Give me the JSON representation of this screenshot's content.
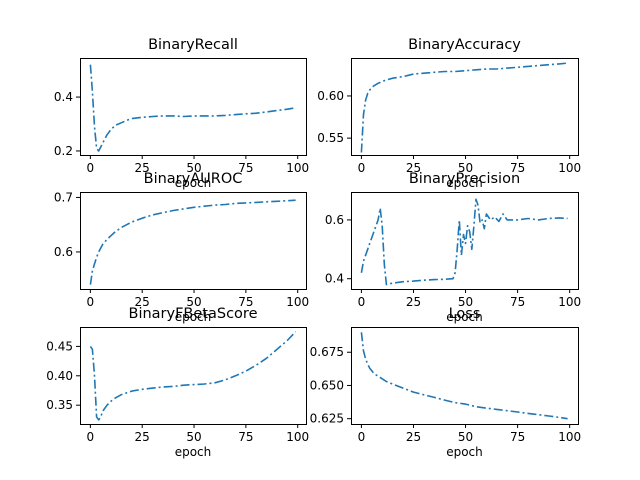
{
  "colors": {
    "series": "#1f77b4",
    "axes": "#000000",
    "background": "#ffffff"
  },
  "chart_data": [
    {
      "type": "line",
      "title": "BinaryRecall",
      "xlabel": "epoch",
      "ylabel": "",
      "xlim": [
        -5,
        104
      ],
      "ylim": [
        0.185,
        0.545
      ],
      "xticks": [
        0,
        25,
        50,
        75,
        100
      ],
      "yticks": [
        0.2,
        0.4
      ],
      "ytick_labels": [
        "0.2",
        "0.4"
      ],
      "linestyle": "dashdot",
      "grid": false,
      "series": [
        {
          "x": [
            0,
            1,
            2,
            3,
            4,
            6,
            8,
            10,
            12,
            15,
            18,
            20,
            25,
            30,
            35,
            40,
            45,
            50,
            55,
            60,
            65,
            70,
            75,
            80,
            85,
            90,
            95,
            99
          ],
          "values": [
            0.52,
            0.42,
            0.29,
            0.21,
            0.2,
            0.23,
            0.26,
            0.28,
            0.295,
            0.305,
            0.315,
            0.32,
            0.325,
            0.328,
            0.33,
            0.33,
            0.328,
            0.33,
            0.33,
            0.33,
            0.332,
            0.335,
            0.338,
            0.34,
            0.345,
            0.35,
            0.355,
            0.36
          ]
        }
      ]
    },
    {
      "type": "line",
      "title": "BinaryAccuracy",
      "xlabel": "epoch",
      "ylabel": "",
      "xlim": [
        -5,
        104
      ],
      "ylim": [
        0.53,
        0.645
      ],
      "xticks": [
        0,
        25,
        50,
        75,
        100
      ],
      "yticks": [
        0.55,
        0.6
      ],
      "ytick_labels": [
        "0.55",
        "0.60"
      ],
      "linestyle": "dashdot",
      "grid": false,
      "series": [
        {
          "x": [
            0,
            1,
            2,
            3,
            4,
            5,
            6,
            8,
            10,
            12,
            15,
            20,
            25,
            30,
            35,
            40,
            45,
            50,
            55,
            60,
            65,
            70,
            75,
            80,
            85,
            90,
            95,
            99
          ],
          "values": [
            0.533,
            0.578,
            0.595,
            0.603,
            0.607,
            0.61,
            0.612,
            0.615,
            0.617,
            0.619,
            0.621,
            0.623,
            0.626,
            0.627,
            0.628,
            0.629,
            0.629,
            0.63,
            0.631,
            0.632,
            0.632,
            0.633,
            0.634,
            0.635,
            0.636,
            0.637,
            0.638,
            0.639
          ]
        }
      ]
    },
    {
      "type": "line",
      "title": "BinaryAUROC",
      "xlabel": "epoch",
      "ylabel": "",
      "xlim": [
        -5,
        104
      ],
      "ylim": [
        0.532,
        0.71
      ],
      "xticks": [
        0,
        25,
        50,
        75,
        100
      ],
      "yticks": [
        0.6,
        0.7
      ],
      "ytick_labels": [
        "0.6",
        "0.7"
      ],
      "linestyle": "dashdot",
      "grid": false,
      "series": [
        {
          "x": [
            0,
            1,
            2,
            3,
            4,
            5,
            6,
            8,
            10,
            12,
            15,
            20,
            25,
            30,
            35,
            40,
            45,
            50,
            55,
            60,
            65,
            70,
            75,
            80,
            85,
            90,
            95,
            99
          ],
          "values": [
            0.54,
            0.565,
            0.578,
            0.59,
            0.6,
            0.607,
            0.614,
            0.623,
            0.63,
            0.637,
            0.645,
            0.655,
            0.662,
            0.668,
            0.672,
            0.676,
            0.679,
            0.682,
            0.684,
            0.686,
            0.687,
            0.689,
            0.69,
            0.691,
            0.692,
            0.693,
            0.694,
            0.695
          ]
        }
      ]
    },
    {
      "type": "line",
      "title": "BinaryPrecision",
      "xlabel": "epoch",
      "ylabel": "",
      "xlim": [
        -5,
        104
      ],
      "ylim": [
        0.365,
        0.695
      ],
      "xticks": [
        0,
        25,
        50,
        75,
        100
      ],
      "yticks": [
        0.4,
        0.6
      ],
      "ytick_labels": [
        "0.4",
        "0.6"
      ],
      "linestyle": "dashdot",
      "grid": false,
      "series": [
        {
          "x": [
            0,
            1,
            2,
            3,
            4,
            5,
            6,
            7,
            8,
            9,
            10,
            11,
            12,
            15,
            20,
            25,
            30,
            35,
            40,
            44,
            45,
            46,
            47,
            48,
            49,
            50,
            51,
            52,
            53,
            54,
            55,
            56,
            57,
            58,
            59,
            60,
            62,
            64,
            66,
            68,
            70,
            75,
            80,
            85,
            90,
            95,
            99
          ],
          "values": [
            0.42,
            0.46,
            0.48,
            0.5,
            0.52,
            0.54,
            0.56,
            0.58,
            0.6,
            0.64,
            0.58,
            0.45,
            0.38,
            0.385,
            0.39,
            0.392,
            0.395,
            0.397,
            0.398,
            0.4,
            0.42,
            0.5,
            0.6,
            0.48,
            0.55,
            0.52,
            0.58,
            0.56,
            0.5,
            0.58,
            0.67,
            0.65,
            0.59,
            0.6,
            0.57,
            0.62,
            0.6,
            0.61,
            0.595,
            0.62,
            0.6,
            0.6,
            0.605,
            0.6,
            0.605,
            0.607,
            0.605
          ]
        }
      ]
    },
    {
      "type": "line",
      "title": "BinaryFBetaScore",
      "xlabel": "epoch",
      "ylabel": "",
      "xlim": [
        -5,
        104
      ],
      "ylim": [
        0.318,
        0.483
      ],
      "xticks": [
        0,
        25,
        50,
        75,
        100
      ],
      "yticks": [
        0.35,
        0.4,
        0.45
      ],
      "ytick_labels": [
        "0.35",
        "0.40",
        "0.45"
      ],
      "linestyle": "dashdot",
      "grid": false,
      "series": [
        {
          "x": [
            0,
            1,
            2,
            3,
            4,
            5,
            6,
            8,
            10,
            12,
            15,
            20,
            25,
            30,
            35,
            40,
            45,
            50,
            55,
            60,
            65,
            70,
            75,
            80,
            85,
            90,
            95,
            99
          ],
          "values": [
            0.45,
            0.445,
            0.4,
            0.33,
            0.325,
            0.33,
            0.34,
            0.35,
            0.357,
            0.362,
            0.368,
            0.374,
            0.377,
            0.379,
            0.381,
            0.382,
            0.384,
            0.385,
            0.386,
            0.388,
            0.393,
            0.4,
            0.408,
            0.418,
            0.43,
            0.445,
            0.46,
            0.475
          ]
        }
      ]
    },
    {
      "type": "line",
      "title": "Loss",
      "xlabel": "epoch",
      "ylabel": "",
      "xlim": [
        -5,
        104
      ],
      "ylim": [
        0.621,
        0.694
      ],
      "xticks": [
        0,
        25,
        50,
        75,
        100
      ],
      "yticks": [
        0.625,
        0.65,
        0.675
      ],
      "ytick_labels": [
        "0.625",
        "0.650",
        "0.675"
      ],
      "linestyle": "dashdot",
      "grid": false,
      "series": [
        {
          "x": [
            0,
            1,
            2,
            3,
            4,
            5,
            6,
            8,
            10,
            12,
            15,
            20,
            25,
            30,
            35,
            40,
            45,
            50,
            55,
            60,
            65,
            70,
            75,
            80,
            85,
            90,
            95,
            99
          ],
          "values": [
            0.69,
            0.676,
            0.67,
            0.666,
            0.663,
            0.661,
            0.659,
            0.657,
            0.655,
            0.653,
            0.651,
            0.648,
            0.645,
            0.643,
            0.641,
            0.639,
            0.637,
            0.636,
            0.634,
            0.633,
            0.632,
            0.631,
            0.63,
            0.629,
            0.628,
            0.627,
            0.626,
            0.625
          ]
        }
      ]
    }
  ]
}
